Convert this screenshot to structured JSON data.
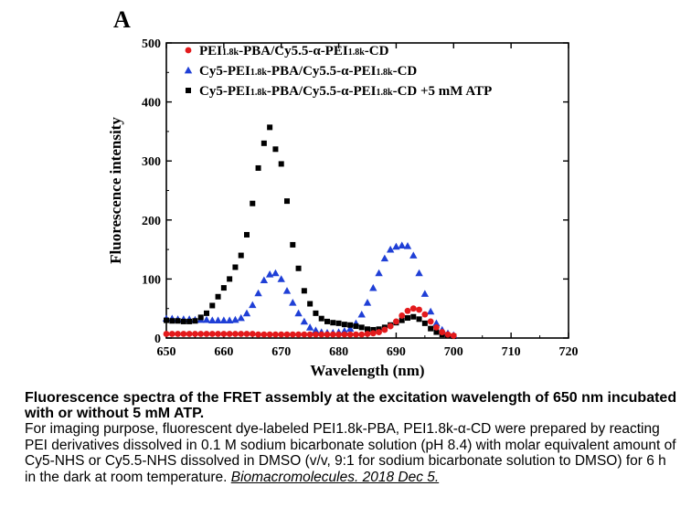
{
  "panel_label": "A",
  "chart_data": {
    "type": "scatter",
    "title": "",
    "xlabel": "Wavelength (nm)",
    "ylabel": "Fluorescence intensity",
    "xlim": [
      650,
      720
    ],
    "ylim": [
      0,
      500
    ],
    "xticks": [
      650,
      660,
      670,
      680,
      690,
      700,
      710,
      720
    ],
    "yticks": [
      0,
      100,
      200,
      300,
      400,
      500
    ],
    "grid": false,
    "legend_position": "top-left",
    "series": [
      {
        "name_parts": [
          "PEI",
          "1.8k",
          "-PBA/Cy5.5-α-PEI",
          "1.8k",
          "-CD"
        ],
        "color": "#e31a1c",
        "marker": "circle",
        "x": [
          650,
          651,
          652,
          653,
          654,
          655,
          656,
          657,
          658,
          659,
          660,
          661,
          662,
          663,
          664,
          665,
          666,
          667,
          668,
          669,
          670,
          671,
          672,
          673,
          674,
          675,
          676,
          677,
          678,
          679,
          680,
          681,
          682,
          683,
          684,
          685,
          686,
          687,
          688,
          689,
          690,
          691,
          692,
          693,
          694,
          695,
          696,
          697,
          698,
          699,
          700
        ],
        "y": [
          7,
          7,
          7,
          7,
          7,
          7,
          7,
          7,
          7,
          7,
          7,
          7,
          7,
          7,
          7,
          7,
          6,
          6,
          6,
          6,
          6,
          6,
          6,
          6,
          6,
          6,
          6,
          6,
          6,
          6,
          6,
          6,
          6,
          6,
          6,
          7,
          8,
          10,
          14,
          20,
          28,
          38,
          46,
          50,
          48,
          40,
          28,
          18,
          10,
          6,
          4
        ]
      },
      {
        "name_parts": [
          "Cy5-PEI",
          "1.8k",
          "-PBA/Cy5.5-α-PEI",
          "1.8k",
          "-CD"
        ],
        "color": "#1f3fd6",
        "marker": "triangle",
        "x": [
          650,
          651,
          652,
          653,
          654,
          655,
          656,
          657,
          658,
          659,
          660,
          661,
          662,
          663,
          664,
          665,
          666,
          667,
          668,
          669,
          670,
          671,
          672,
          673,
          674,
          675,
          676,
          677,
          678,
          679,
          680,
          681,
          682,
          683,
          684,
          685,
          686,
          687,
          688,
          689,
          690,
          691,
          692,
          693,
          694,
          695,
          696,
          697,
          698,
          699,
          700
        ],
        "y": [
          33,
          33,
          32,
          32,
          32,
          31,
          31,
          31,
          30,
          30,
          30,
          30,
          31,
          34,
          42,
          56,
          76,
          98,
          108,
          110,
          100,
          80,
          60,
          42,
          28,
          18,
          13,
          10,
          9,
          9,
          10,
          12,
          16,
          25,
          40,
          60,
          85,
          110,
          135,
          150,
          155,
          157,
          156,
          140,
          110,
          75,
          45,
          25,
          14,
          8,
          5
        ]
      },
      {
        "name_parts": [
          "Cy5-PEI",
          "1.8k",
          "-PBA/Cy5.5-α-PEI",
          "1.8k",
          "-CD +5 mM ATP"
        ],
        "color": "#000000",
        "marker": "square",
        "x": [
          650,
          651,
          652,
          653,
          654,
          655,
          656,
          657,
          658,
          659,
          660,
          661,
          662,
          663,
          664,
          665,
          666,
          667,
          668,
          669,
          670,
          671,
          672,
          673,
          674,
          675,
          676,
          677,
          678,
          679,
          680,
          681,
          682,
          683,
          684,
          685,
          686,
          687,
          688,
          689,
          690,
          691,
          692,
          693,
          694,
          695,
          696,
          697,
          698,
          699,
          700
        ],
        "y": [
          30,
          29,
          29,
          28,
          28,
          29,
          35,
          42,
          55,
          70,
          85,
          100,
          120,
          140,
          175,
          228,
          288,
          330,
          357,
          320,
          295,
          232,
          158,
          118,
          80,
          58,
          42,
          33,
          28,
          26,
          25,
          23,
          22,
          20,
          18,
          15,
          14,
          15,
          18,
          22,
          26,
          30,
          34,
          36,
          32,
          25,
          16,
          10,
          6,
          4,
          3
        ]
      }
    ]
  },
  "caption": {
    "title": "Fluorescence spectra of the FRET assembly at the excitation wavelength of 650 nm incubated with or without 5 mM ATP.",
    "body": "For imaging purpose, fluorescent dye-labeled PEI1.8k-PBA, PEI1.8k-α-CD were prepared by reacting PEI derivatives dissolved in 0.1 M sodium bicarbonate solution (pH 8.4) with molar equivalent amount of Cy5-NHS or Cy5.5-NHS dissolved in DMSO (v/v, 9:1 for sodium bicarbonate solution to DMSO) for 6 h in the dark at room temperature.",
    "citation": "Biomacromolecules. 2018 Dec 5."
  }
}
